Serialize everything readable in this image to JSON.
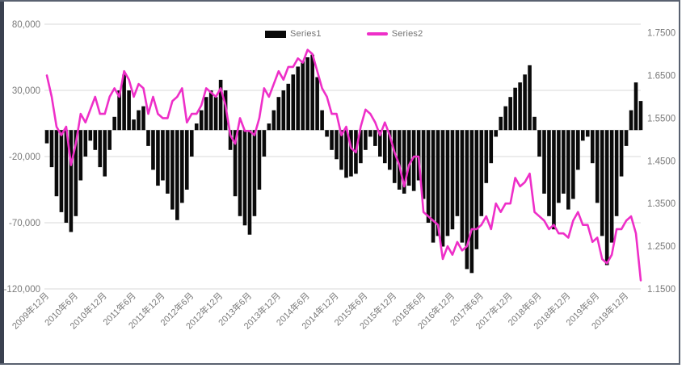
{
  "window": {
    "background": "#ffffff",
    "border_color": "#596170",
    "left_edge_color": "#3a4150"
  },
  "legend": {
    "items": [
      {
        "label": "Series1",
        "type": "bar",
        "color": "#0a0a0a"
      },
      {
        "label": "Series2",
        "type": "line",
        "color": "#ee2fc8"
      }
    ]
  },
  "chart_data": {
    "type": "combo",
    "title": "",
    "xlabel": "",
    "ylabel_left": "",
    "ylabel_right": "",
    "grid": true,
    "gridline_color": "#d9d9d9",
    "axis_text_color": "#7a7a7a",
    "legend_position": "top-center",
    "x": [
      "2009-12",
      "2010-01",
      "2010-02",
      "2010-03",
      "2010-04",
      "2010-05",
      "2010-06",
      "2010-07",
      "2010-08",
      "2010-09",
      "2010-10",
      "2010-11",
      "2010-12",
      "2011-01",
      "2011-02",
      "2011-03",
      "2011-04",
      "2011-05",
      "2011-06",
      "2011-07",
      "2011-08",
      "2011-09",
      "2011-10",
      "2011-11",
      "2011-12",
      "2012-01",
      "2012-02",
      "2012-03",
      "2012-04",
      "2012-05",
      "2012-06",
      "2012-07",
      "2012-08",
      "2012-09",
      "2012-10",
      "2012-11",
      "2012-12",
      "2013-01",
      "2013-02",
      "2013-03",
      "2013-04",
      "2013-05",
      "2013-06",
      "2013-07",
      "2013-08",
      "2013-09",
      "2013-10",
      "2013-11",
      "2013-12",
      "2014-01",
      "2014-02",
      "2014-03",
      "2014-04",
      "2014-05",
      "2014-06",
      "2014-07",
      "2014-08",
      "2014-09",
      "2014-10",
      "2014-11",
      "2014-12",
      "2015-01",
      "2015-02",
      "2015-03",
      "2015-04",
      "2015-05",
      "2015-06",
      "2015-07",
      "2015-08",
      "2015-09",
      "2015-10",
      "2015-11",
      "2015-12",
      "2016-01",
      "2016-02",
      "2016-03",
      "2016-04",
      "2016-05",
      "2016-06",
      "2016-07",
      "2016-08",
      "2016-09",
      "2016-10",
      "2016-11",
      "2016-12",
      "2017-01",
      "2017-02",
      "2017-03",
      "2017-04",
      "2017-05",
      "2017-06",
      "2017-07",
      "2017-08",
      "2017-09",
      "2017-10",
      "2017-11",
      "2017-12",
      "2018-01",
      "2018-02",
      "2018-03",
      "2018-04",
      "2018-05",
      "2018-06",
      "2018-07",
      "2018-08",
      "2018-09",
      "2018-10",
      "2018-11",
      "2018-12",
      "2019-01",
      "2019-02",
      "2019-03",
      "2019-04",
      "2019-05",
      "2019-06",
      "2019-07",
      "2019-08",
      "2019-09",
      "2019-10",
      "2019-11",
      "2019-12",
      "2020-01",
      "2020-02",
      "2020-03"
    ],
    "x_tick_labels": [
      "2009年12月",
      "2010年6月",
      "2010年12月",
      "2011年6月",
      "2011年12月",
      "2012年6月",
      "2012年12月",
      "2013年6月",
      "2013年12月",
      "2014年6月",
      "2014年12月",
      "2015年6月",
      "2015年12月",
      "2016年6月",
      "2016年12月",
      "2017年6月",
      "2017年12月",
      "2018年6月",
      "2018年12月",
      "2019年6月",
      "2019年12月"
    ],
    "x_tick_every_months": 6,
    "series": [
      {
        "name": "Series1",
        "type": "bar",
        "axis": "left",
        "color": "#0a0a0a",
        "values": [
          -10000,
          -28000,
          -50000,
          -62000,
          -70000,
          -77000,
          -65000,
          -38000,
          -20000,
          -8000,
          -15000,
          -28000,
          -35000,
          -15000,
          10000,
          30000,
          42000,
          30000,
          8000,
          15000,
          18000,
          -12000,
          -30000,
          -42000,
          -38000,
          -48000,
          -60000,
          -68000,
          -55000,
          -45000,
          -20000,
          5000,
          15000,
          25000,
          30000,
          25000,
          38000,
          30000,
          -15000,
          -50000,
          -65000,
          -72000,
          -79000,
          -65000,
          -45000,
          -20000,
          5000,
          15000,
          25000,
          30000,
          35000,
          42000,
          48000,
          52000,
          55000,
          57000,
          40000,
          15000,
          -5000,
          -15000,
          -22000,
          -30000,
          -36000,
          -35000,
          -33000,
          -25000,
          -15000,
          -5000,
          -12000,
          -20000,
          -25000,
          -30000,
          -40000,
          -45000,
          -48000,
          -42000,
          -46000,
          -38000,
          -52000,
          -70000,
          -85000,
          -80000,
          -88000,
          -80000,
          -75000,
          -65000,
          -85000,
          -105000,
          -108000,
          -90000,
          -65000,
          -40000,
          -25000,
          -5000,
          10000,
          18000,
          25000,
          32000,
          36000,
          42000,
          49000,
          10000,
          -20000,
          -48000,
          -65000,
          -75000,
          -55000,
          -48000,
          -60000,
          -52000,
          -30000,
          -8000,
          -5000,
          -25000,
          -55000,
          -80000,
          -102000,
          -85000,
          -65000,
          -35000,
          -12000,
          15000,
          36000,
          22000
        ]
      },
      {
        "name": "Series2",
        "type": "line",
        "axis": "right",
        "color": "#ee2fc8",
        "values": [
          1.65,
          1.6,
          1.53,
          1.51,
          1.53,
          1.44,
          1.49,
          1.56,
          1.54,
          1.57,
          1.6,
          1.56,
          1.56,
          1.6,
          1.62,
          1.6,
          1.66,
          1.64,
          1.6,
          1.63,
          1.62,
          1.56,
          1.6,
          1.56,
          1.55,
          1.55,
          1.59,
          1.6,
          1.62,
          1.54,
          1.56,
          1.56,
          1.58,
          1.62,
          1.61,
          1.6,
          1.62,
          1.58,
          1.51,
          1.49,
          1.55,
          1.52,
          1.52,
          1.51,
          1.55,
          1.62,
          1.6,
          1.63,
          1.66,
          1.64,
          1.67,
          1.67,
          1.69,
          1.68,
          1.71,
          1.7,
          1.66,
          1.62,
          1.6,
          1.56,
          1.56,
          1.51,
          1.53,
          1.48,
          1.47,
          1.53,
          1.57,
          1.56,
          1.54,
          1.51,
          1.54,
          1.51,
          1.47,
          1.44,
          1.39,
          1.44,
          1.46,
          1.46,
          1.33,
          1.32,
          1.31,
          1.3,
          1.22,
          1.25,
          1.23,
          1.26,
          1.24,
          1.25,
          1.29,
          1.29,
          1.3,
          1.32,
          1.29,
          1.35,
          1.33,
          1.35,
          1.35,
          1.41,
          1.39,
          1.4,
          1.42,
          1.33,
          1.32,
          1.31,
          1.29,
          1.3,
          1.28,
          1.28,
          1.27,
          1.31,
          1.33,
          1.3,
          1.3,
          1.26,
          1.27,
          1.22,
          1.21,
          1.23,
          1.29,
          1.29,
          1.31,
          1.32,
          1.28,
          1.17
        ]
      }
    ],
    "left_axis": {
      "tick_labels": [
        "80,000",
        "30,000",
        "-20,000",
        "-70,000",
        "-120,000"
      ],
      "tick_values": [
        80000,
        30000,
        -20000,
        -70000,
        -120000
      ],
      "min": -120000,
      "max": 80000
    },
    "right_axis": {
      "tick_labels": [
        "1.7500",
        "1.6500",
        "1.5500",
        "1.4500",
        "1.3500",
        "1.2500",
        "1.1500"
      ],
      "tick_values": [
        1.75,
        1.65,
        1.55,
        1.45,
        1.35,
        1.25,
        1.15
      ],
      "min": 1.15,
      "max": 1.77
    }
  }
}
